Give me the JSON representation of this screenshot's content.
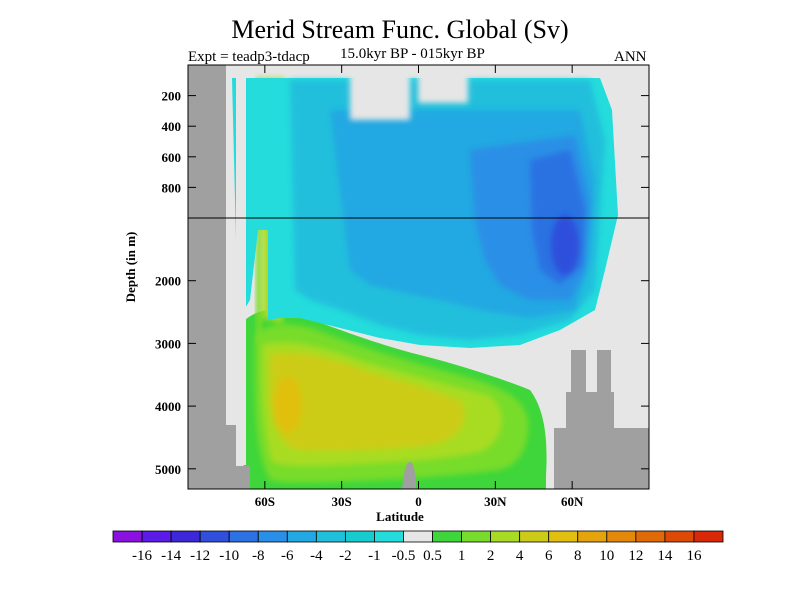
{
  "chart_data": {
    "type": "heatmap",
    "title": "Merid Stream Func. Global (Sv)",
    "expt_label": "Expt = teadp3-tdacp",
    "period_label": "15.0kyr BP - 015kyr BP",
    "season_label": "ANN",
    "xlabel": "Latitude",
    "ylabel": "Depth (in m)",
    "x_range": [
      -90,
      90
    ],
    "x_ticks": [
      {
        "value": -60,
        "label": "60S"
      },
      {
        "value": -30,
        "label": "30S"
      },
      {
        "value": 0,
        "label": "0"
      },
      {
        "value": 30,
        "label": "30N"
      },
      {
        "value": 60,
        "label": "60N"
      }
    ],
    "y_range_m": [
      0,
      5250
    ],
    "y_axis_note": "upper 1000 m stretched; axis break at 1000 m",
    "y_ticks": [
      {
        "value": 200,
        "label": "200"
      },
      {
        "value": 400,
        "label": "400"
      },
      {
        "value": 600,
        "label": "600"
      },
      {
        "value": 800,
        "label": "800"
      },
      {
        "value": 2000,
        "label": "2000"
      },
      {
        "value": 3000,
        "label": "3000"
      },
      {
        "value": 4000,
        "label": "4000"
      },
      {
        "value": 5000,
        "label": "5000"
      }
    ],
    "colorbar": {
      "labels": [
        "-16",
        "-14",
        "-12",
        "-10",
        "-8",
        "-6",
        "-4",
        "-2",
        "-1",
        "-0.5",
        "0.5",
        "1",
        "2",
        "4",
        "6",
        "8",
        "10",
        "12",
        "14",
        "16"
      ],
      "colors": [
        "#8a11e0",
        "#5a1ce6",
        "#3c28d8",
        "#2f4fdc",
        "#2c72e2",
        "#2a8fe6",
        "#22a8e2",
        "#20bfdc",
        "#17cccf",
        "#24dcdc",
        "#e6e6e6",
        "#3ed63a",
        "#78dc2c",
        "#a8dc24",
        "#cccc18",
        "#e1c010",
        "#e6a40c",
        "#e4880a",
        "#e06a08",
        "#dc4a06",
        "#d82806"
      ]
    },
    "regions": [
      {
        "name": "overturning-cell",
        "value_range_sv": [
          -12,
          -1
        ],
        "colors": [
          "#24dcdc",
          "#20bfdc",
          "#22a8e2",
          "#2a8fe6",
          "#2c72e2",
          "#2f4fdc"
        ]
      },
      {
        "name": "bottom-water-cell",
        "value_range_sv": [
          1,
          8
        ],
        "colors": [
          "#3ed63a",
          "#78dc2c",
          "#a8dc24",
          "#cccc18",
          "#e1c010"
        ]
      },
      {
        "name": "near-zero",
        "value_range_sv": [
          -0.5,
          0.5
        ],
        "colors": [
          "#e6e6e6"
        ]
      },
      {
        "name": "land-topography",
        "colors": [
          "#a0a0a0"
        ]
      }
    ]
  }
}
